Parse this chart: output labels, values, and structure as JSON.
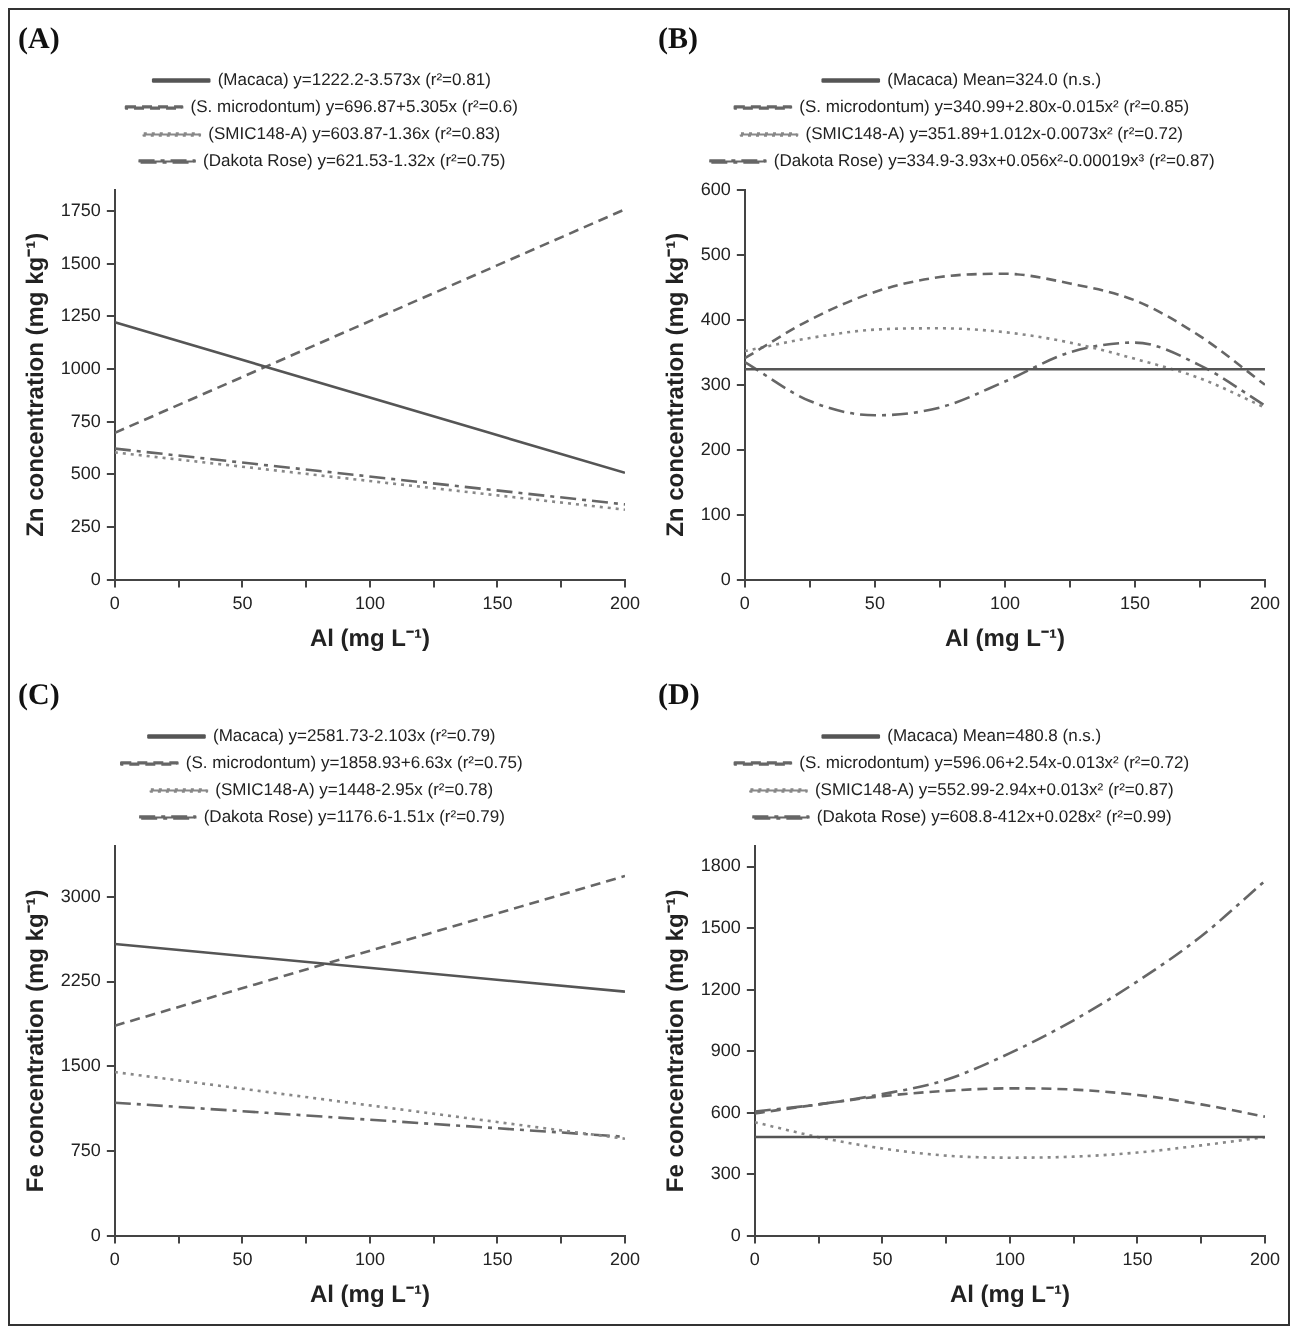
{
  "chart_data": [
    {
      "type": "line",
      "title": "(A)",
      "xlabel": "Al (mg L⁻¹)",
      "ylabel": "Zn concentration (mg kg⁻¹)",
      "xlim": [
        0,
        200
      ],
      "xticks": [
        0,
        {
          "value": 25,
          "label": null
        },
        50,
        {
          "value": 75,
          "label": null
        },
        100,
        {
          "value": 125,
          "label": null
        },
        150,
        {
          "value": 175,
          "label": null
        },
        200
      ],
      "ylim": [
        0,
        1850
      ],
      "yticks": [
        0,
        250,
        500,
        750,
        1000,
        1250,
        1500,
        1750
      ],
      "legend": "top",
      "grid": false,
      "marker": "none",
      "series": [
        {
          "name": "(Macaca) y=1222.2-3.573x (r²=0.81)",
          "color": "#555555",
          "line_style": "solid",
          "x": [
            0,
            200
          ],
          "values": [
            1222,
            507
          ]
        },
        {
          "name": "(S. microdontum) y=696.87+5.305x (r²=0.6)",
          "color": "#666666",
          "line_style": "dashed",
          "x": [
            0,
            200
          ],
          "values": [
            697,
            1758
          ]
        },
        {
          "name": "(SMIC148-A) y=603.87-1.36x (r²=0.83)",
          "color": "#888888",
          "line_style": "dotted",
          "x": [
            0,
            200
          ],
          "values": [
            604,
            332
          ]
        },
        {
          "name": "(Dakota Rose) y=621.53-1.32x (r²=0.75)",
          "color": "#666666",
          "line_style": "dashdot",
          "x": [
            0,
            200
          ],
          "values": [
            622,
            357
          ]
        }
      ]
    },
    {
      "type": "line",
      "title": "(B)",
      "xlabel": "Al (mg L⁻¹)",
      "ylabel": "Zn concentration (mg kg⁻¹)",
      "xlim": [
        0,
        200
      ],
      "xticks": [
        0,
        {
          "value": 25,
          "label": null
        },
        50,
        {
          "value": 75,
          "label": null
        },
        100,
        {
          "value": 125,
          "label": null
        },
        150,
        {
          "value": 175,
          "label": null
        },
        200
      ],
      "ylim": [
        0,
        600
      ],
      "yticks": [
        0,
        100,
        200,
        300,
        400,
        500,
        600
      ],
      "legend": "top",
      "grid": false,
      "marker": "none",
      "series": [
        {
          "name": "(Macaca) Mean=324.0 (n.s.)",
          "color": "#555555",
          "line_style": "solid",
          "x": [
            0,
            200
          ],
          "values": [
            324,
            324
          ]
        },
        {
          "name": "(S. microdontum) y=340.99+2.80x-0.015x² (r²=0.85)",
          "color": "#666666",
          "line_style": "dashed",
          "x": [
            0,
            25,
            50,
            75,
            100,
            125,
            150,
            175,
            200
          ],
          "values": [
            341,
            400,
            443,
            466,
            471,
            456,
            430,
            375,
            300
          ]
        },
        {
          "name": "(SMIC148-A) y=351.89+1.012x-0.0073x² (r²=0.72)",
          "color": "#888888",
          "line_style": "dotted",
          "x": [
            0,
            25,
            50,
            75,
            100,
            125,
            150,
            175,
            200
          ],
          "values": [
            352,
            372,
            385,
            387,
            381,
            365,
            340,
            310,
            265
          ]
        },
        {
          "name": "(Dakota Rose) y=334.9-3.93x+0.056x²-0.00019x³ (r²=0.87)",
          "color": "#666666",
          "line_style": "dashdot",
          "x": [
            0,
            25,
            50,
            75,
            100,
            125,
            150,
            175,
            200
          ],
          "values": [
            335,
            275,
            253,
            265,
            305,
            350,
            365,
            330,
            268
          ]
        }
      ]
    },
    {
      "type": "line",
      "title": "(C)",
      "xlabel": "Al (mg L⁻¹)",
      "ylabel": "Fe concentration (mg kg⁻¹)",
      "xlim": [
        0,
        200
      ],
      "xticks": [
        0,
        {
          "value": 25,
          "label": null
        },
        50,
        {
          "value": 75,
          "label": null
        },
        100,
        {
          "value": 125,
          "label": null
        },
        150,
        {
          "value": 175,
          "label": null
        },
        200
      ],
      "ylim": [
        0,
        3450
      ],
      "yticks": [
        0,
        750,
        1500,
        2250,
        3000
      ],
      "legend": "top",
      "grid": false,
      "marker": "none",
      "series": [
        {
          "name": "(Macaca) y=2581.73-2.103x (r²=0.79)",
          "color": "#555555",
          "line_style": "solid",
          "x": [
            0,
            200
          ],
          "values": [
            2582,
            2160
          ]
        },
        {
          "name": "(S. microdontum) y=1858.93+6.63x (r²=0.75)",
          "color": "#666666",
          "line_style": "dashed",
          "x": [
            0,
            200
          ],
          "values": [
            1859,
            3185
          ]
        },
        {
          "name": "(SMIC148-A) y=1448-2.95x (r²=0.78)",
          "color": "#888888",
          "line_style": "dotted",
          "x": [
            0,
            200
          ],
          "values": [
            1448,
            858
          ]
        },
        {
          "name": "(Dakota Rose) y=1176.6-1.51x (r²=0.79)",
          "color": "#666666",
          "line_style": "dashdot",
          "x": [
            0,
            200
          ],
          "values": [
            1177,
            875
          ]
        }
      ]
    },
    {
      "type": "line",
      "title": "(D)",
      "xlabel": "Al (mg L⁻¹)",
      "ylabel": "Fe concentration (mg kg⁻¹)",
      "xlim": [
        0,
        200
      ],
      "xticks": [
        0,
        {
          "value": 25,
          "label": null
        },
        50,
        {
          "value": 75,
          "label": null
        },
        100,
        {
          "value": 125,
          "label": null
        },
        150,
        {
          "value": 175,
          "label": null
        },
        200
      ],
      "ylim": [
        0,
        1900
      ],
      "yticks": [
        0,
        300,
        600,
        900,
        1200,
        1500,
        1800
      ],
      "legend": "top",
      "grid": false,
      "marker": "none",
      "series": [
        {
          "name": "(Macaca) Mean=480.8 (n.s.)",
          "color": "#555555",
          "line_style": "solid",
          "x": [
            0,
            200
          ],
          "values": [
            481,
            481
          ]
        },
        {
          "name": "(S. microdontum) y=596.06+2.54x-0.013x² (r²=0.72)",
          "color": "#666666",
          "line_style": "dashed",
          "x": [
            0,
            25,
            50,
            75,
            100,
            125,
            150,
            175,
            200
          ],
          "values": [
            596,
            640,
            680,
            706,
            718,
            712,
            686,
            640,
            580
          ]
        },
        {
          "name": "(SMIC148-A) y=552.99-2.94x+0.013x² (r²=0.87)",
          "color": "#888888",
          "line_style": "dotted",
          "x": [
            0,
            25,
            50,
            75,
            100,
            125,
            150,
            175,
            200
          ],
          "values": [
            553,
            480,
            425,
            390,
            380,
            385,
            405,
            440,
            480
          ]
        },
        {
          "name": "(Dakota Rose) y=608.8-412x+0.028x² (r²=0.99)",
          "color": "#666666",
          "line_style": "dashdot",
          "x": [
            0,
            25,
            50,
            75,
            100,
            125,
            150,
            175,
            200
          ],
          "values": [
            605,
            640,
            690,
            760,
            890,
            1050,
            1240,
            1460,
            1730
          ]
        }
      ]
    }
  ]
}
